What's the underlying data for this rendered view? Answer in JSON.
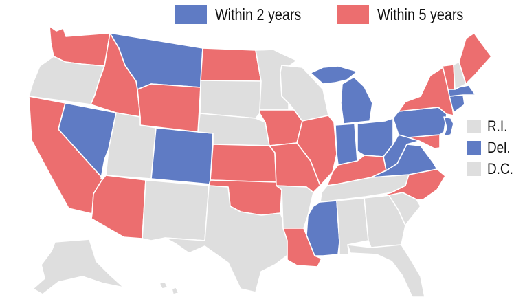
{
  "colors": {
    "within2": "#5f7bc4",
    "within5": "#ec6e6f",
    "none": "#dedede",
    "border": "#ffffff"
  },
  "legend": {
    "within2_label": "Within 2 years",
    "within5_label": "Within 5 years"
  },
  "small_states": [
    {
      "label": "R.I.",
      "category": "none"
    },
    {
      "label": "Del.",
      "category": "within2"
    },
    {
      "label": "D.C.",
      "category": "none"
    }
  ],
  "states": {
    "WA": "within5",
    "OR": "none",
    "CA": "within5",
    "NV": "within2",
    "ID": "within5",
    "MT": "within2",
    "WY": "within5",
    "UT": "none",
    "AZ": "within5",
    "CO": "within2",
    "NM": "none",
    "ND": "within5",
    "SD": "none",
    "NE": "none",
    "KS": "within5",
    "OK": "within5",
    "TX": "none",
    "MN": "none",
    "IA": "within5",
    "MO": "within5",
    "AR": "none",
    "LA": "within5",
    "WI": "none",
    "IL": "within5",
    "MI": "within2",
    "IN": "within2",
    "OH": "within2",
    "KY": "within5",
    "TN": "none",
    "MS": "within2",
    "AL": "none",
    "GA": "none",
    "FL": "none",
    "SC": "none",
    "NC": "within5",
    "VA": "within2",
    "WV": "within2",
    "MD": "within5",
    "PA": "within2",
    "NY": "within5",
    "NJ": "within2",
    "CT": "within2",
    "MA": "within2",
    "VT": "within5",
    "NH": "none",
    "ME": "within5",
    "AK": "none",
    "HI": "none"
  }
}
